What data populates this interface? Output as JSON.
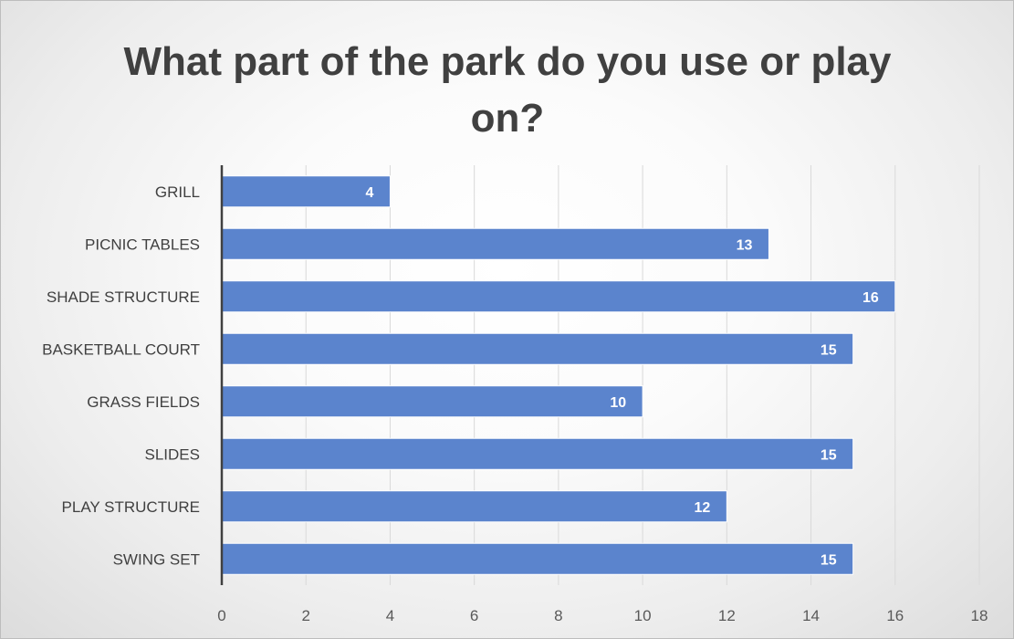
{
  "chart_data": {
    "type": "bar",
    "orientation": "horizontal",
    "title": "What part of the park do you use or play on?",
    "categories": [
      "GRILL",
      "PICNIC TABLES",
      "SHADE STRUCTURE",
      "BASKETBALL COURT",
      "GRASS FIELDS",
      "SLIDES",
      "PLAY STRUCTURE",
      "SWING SET"
    ],
    "values": [
      4,
      13,
      16,
      15,
      10,
      15,
      12,
      15
    ],
    "xlim": [
      0,
      18
    ],
    "xticks": [
      0,
      2,
      4,
      6,
      8,
      10,
      12,
      14,
      16,
      18
    ],
    "grid": true,
    "data_labels": true,
    "legend": "none",
    "colors": {
      "bar": "#5b84cd",
      "bar_border": "#ffffff",
      "grid": "#d9d9d9",
      "axis": "#404040",
      "title": "#404040",
      "data_label": "#ffffff"
    }
  }
}
